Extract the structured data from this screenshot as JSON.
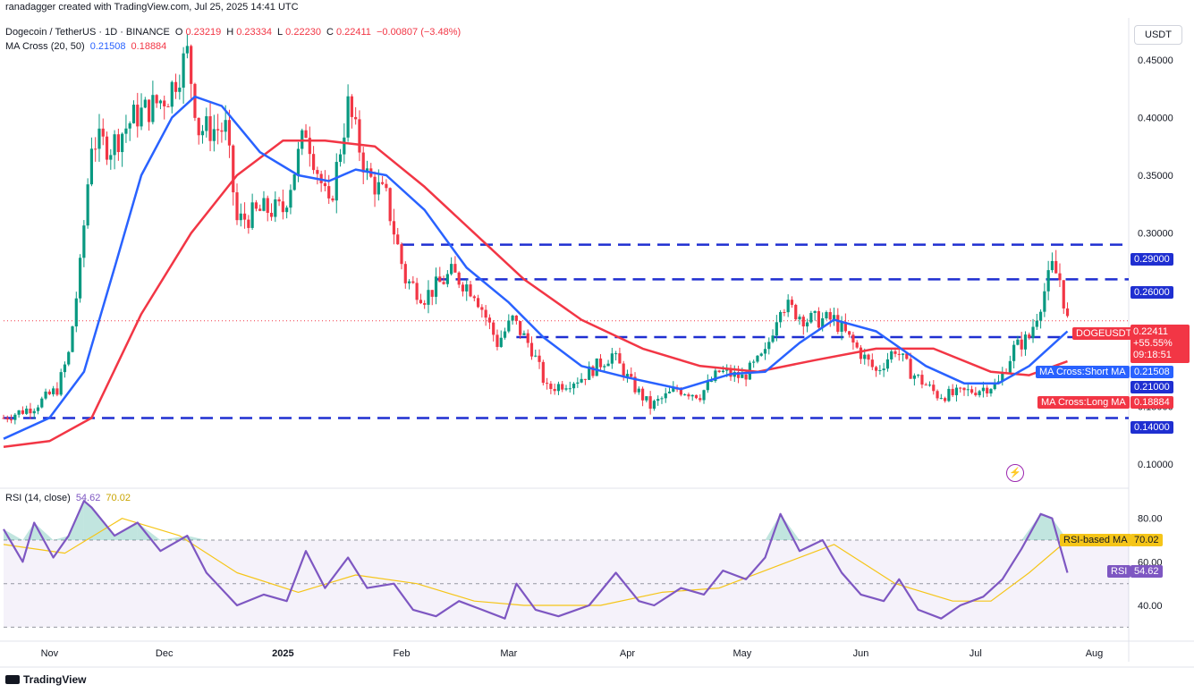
{
  "attribution": "ranadagger created with TradingView.com, Jul 25, 2025 14:41 UTC",
  "header": {
    "symbol": "Dogecoin / TetherUS · 1D · BINANCE",
    "o_label": "O",
    "o": "0.23219",
    "h_label": "H",
    "h": "0.23334",
    "l_label": "L",
    "l": "0.22230",
    "c_label": "C",
    "c": "0.22411",
    "change": "−0.00807 (−3.48%)",
    "ma_label": "MA Cross (20, 50)",
    "ma_short": "0.21508",
    "ma_long": "0.18884"
  },
  "currency_button": "USDT",
  "rsi_header": {
    "label": "RSI (14, close)",
    "value": "54.62",
    "ma": "70.02"
  },
  "price_tags": {
    "symbol": "DOGEUSDT",
    "last": "0.22411",
    "pct": "+55.55%",
    "timer": "09:18:51",
    "ma_short_label": "MA Cross:Short MA",
    "ma_short_value": "0.21508",
    "ma_long_label": "MA Cross:Long MA",
    "ma_long_value": "0.18884",
    "level_290": "0.29000",
    "level_260": "0.26000",
    "level_210": "0.21000",
    "level_140": "0.14000",
    "rsi_ma_label": "RSI-based MA",
    "rsi_ma_value": "70.02",
    "rsi_label": "RSI",
    "rsi_value": "54.62"
  },
  "footer": "TradingView",
  "colors": {
    "up": "#089981",
    "down": "#f23645",
    "short_ma": "#2962ff",
    "long_ma": "#f23645",
    "levels": "#1f2fd1",
    "rsi": "#7e57c2",
    "rsi_ma": "#f5c518"
  },
  "chart_data": [
    {
      "type": "candlestick",
      "title": "Dogecoin / TetherUS · 1D · BINANCE",
      "ylim": [
        0.08,
        0.48
      ],
      "y_ticks": [
        "0.45000",
        "0.40000",
        "0.35000",
        "0.30000",
        "0.25000",
        "0.15000",
        "0.10000"
      ],
      "x_ticks": [
        "Nov",
        "Dec",
        "2025",
        "Feb",
        "Mar",
        "Apr",
        "May",
        "Jun",
        "Jul",
        "Aug"
      ],
      "levels": [
        0.29,
        0.26,
        0.21,
        0.14
      ],
      "close_path": [
        [
          "2024-10-20",
          0.14
        ],
        [
          "2024-10-28",
          0.15
        ],
        [
          "2024-11-03",
          0.165
        ],
        [
          "2024-11-06",
          0.195
        ],
        [
          "2024-11-09",
          0.27
        ],
        [
          "2024-11-12",
          0.38
        ],
        [
          "2024-11-17",
          0.375
        ],
        [
          "2024-11-23",
          0.4
        ],
        [
          "2024-11-28",
          0.41
        ],
        [
          "2024-12-02",
          0.42
        ],
        [
          "2024-12-07",
          0.455
        ],
        [
          "2024-12-10",
          0.39
        ],
        [
          "2024-12-17",
          0.39
        ],
        [
          "2024-12-20",
          0.31
        ],
        [
          "2024-12-27",
          0.32
        ],
        [
          "2025-01-01",
          0.32
        ],
        [
          "2025-01-07",
          0.39
        ],
        [
          "2025-01-13",
          0.32
        ],
        [
          "2025-01-18",
          0.41
        ],
        [
          "2025-01-23",
          0.35
        ],
        [
          "2025-01-28",
          0.33
        ],
        [
          "2025-02-02",
          0.26
        ],
        [
          "2025-02-07",
          0.245
        ],
        [
          "2025-02-14",
          0.265
        ],
        [
          "2025-02-20",
          0.25
        ],
        [
          "2025-02-26",
          0.205
        ],
        [
          "2025-03-02",
          0.225
        ],
        [
          "2025-03-07",
          0.2
        ],
        [
          "2025-03-11",
          0.165
        ],
        [
          "2025-03-20",
          0.175
        ],
        [
          "2025-03-28",
          0.195
        ],
        [
          "2025-04-02",
          0.17
        ],
        [
          "2025-04-07",
          0.15
        ],
        [
          "2025-04-14",
          0.165
        ],
        [
          "2025-04-20",
          0.16
        ],
        [
          "2025-04-25",
          0.18
        ],
        [
          "2025-05-01",
          0.175
        ],
        [
          "2025-05-07",
          0.195
        ],
        [
          "2025-05-11",
          0.24
        ],
        [
          "2025-05-18",
          0.225
        ],
        [
          "2025-05-25",
          0.225
        ],
        [
          "2025-05-31",
          0.2
        ],
        [
          "2025-06-05",
          0.18
        ],
        [
          "2025-06-10",
          0.2
        ],
        [
          "2025-06-14",
          0.18
        ],
        [
          "2025-06-21",
          0.16
        ],
        [
          "2025-06-25",
          0.16
        ],
        [
          "2025-07-02",
          0.165
        ],
        [
          "2025-07-07",
          0.17
        ],
        [
          "2025-07-11",
          0.2
        ],
        [
          "2025-07-15",
          0.21
        ],
        [
          "2025-07-18",
          0.24
        ],
        [
          "2025-07-21",
          0.27
        ],
        [
          "2025-07-23",
          0.26
        ],
        [
          "2025-07-25",
          0.224
        ]
      ],
      "series": [
        {
          "name": "MA Cross:Short MA",
          "points": [
            [
              "2024-10-20",
              0.122
            ],
            [
              "2024-11-01",
              0.14
            ],
            [
              "2024-11-10",
              0.18
            ],
            [
              "2024-11-18",
              0.27
            ],
            [
              "2024-11-25",
              0.35
            ],
            [
              "2024-12-03",
              0.4
            ],
            [
              "2024-12-09",
              0.418
            ],
            [
              "2024-12-16",
              0.41
            ],
            [
              "2024-12-26",
              0.37
            ],
            [
              "2025-01-05",
              0.35
            ],
            [
              "2025-01-13",
              0.345
            ],
            [
              "2025-01-20",
              0.355
            ],
            [
              "2025-01-28",
              0.35
            ],
            [
              "2025-02-07",
              0.32
            ],
            [
              "2025-02-18",
              0.27
            ],
            [
              "2025-03-01",
              0.24
            ],
            [
              "2025-03-10",
              0.21
            ],
            [
              "2025-03-20",
              0.185
            ],
            [
              "2025-04-01",
              0.175
            ],
            [
              "2025-04-15",
              0.165
            ],
            [
              "2025-04-28",
              0.178
            ],
            [
              "2025-05-07",
              0.18
            ],
            [
              "2025-05-16",
              0.205
            ],
            [
              "2025-05-25",
              0.225
            ],
            [
              "2025-06-05",
              0.215
            ],
            [
              "2025-06-18",
              0.185
            ],
            [
              "2025-06-28",
              0.17
            ],
            [
              "2025-07-07",
              0.17
            ],
            [
              "2025-07-15",
              0.185
            ],
            [
              "2025-07-25",
              0.215
            ]
          ]
        },
        {
          "name": "MA Cross:Long MA",
          "points": [
            [
              "2024-10-20",
              0.115
            ],
            [
              "2024-11-01",
              0.12
            ],
            [
              "2024-11-12",
              0.14
            ],
            [
              "2024-11-25",
              0.23
            ],
            [
              "2024-12-08",
              0.3
            ],
            [
              "2024-12-20",
              0.35
            ],
            [
              "2025-01-01",
              0.38
            ],
            [
              "2025-01-12",
              0.38
            ],
            [
              "2025-01-25",
              0.375
            ],
            [
              "2025-02-07",
              0.34
            ],
            [
              "2025-02-20",
              0.3
            ],
            [
              "2025-03-05",
              0.26
            ],
            [
              "2025-03-20",
              0.225
            ],
            [
              "2025-04-05",
              0.2
            ],
            [
              "2025-04-20",
              0.185
            ],
            [
              "2025-05-05",
              0.18
            ],
            [
              "2025-05-20",
              0.19
            ],
            [
              "2025-06-05",
              0.2
            ],
            [
              "2025-06-20",
              0.2
            ],
            [
              "2025-07-05",
              0.18
            ],
            [
              "2025-07-15",
              0.177
            ],
            [
              "2025-07-25",
              0.189
            ]
          ]
        }
      ]
    },
    {
      "type": "line",
      "title": "RSI (14, close)",
      "ylim": [
        24,
        93
      ],
      "y_ticks": [
        "80.00",
        "60.00",
        "40.00"
      ],
      "bands": [
        70,
        50,
        30
      ],
      "series": [
        {
          "name": "RSI",
          "points": [
            [
              "2024-10-20",
              75
            ],
            [
              "2024-10-25",
              60
            ],
            [
              "2024-10-28",
              78
            ],
            [
              "2024-11-02",
              62
            ],
            [
              "2024-11-06",
              72
            ],
            [
              "2024-11-10",
              88
            ],
            [
              "2024-11-12",
              85
            ],
            [
              "2024-11-18",
              72
            ],
            [
              "2024-11-24",
              78
            ],
            [
              "2024-11-30",
              65
            ],
            [
              "2024-12-07",
              72
            ],
            [
              "2024-12-12",
              55
            ],
            [
              "2024-12-20",
              40
            ],
            [
              "2024-12-27",
              45
            ],
            [
              "2025-01-02",
              42
            ],
            [
              "2025-01-07",
              65
            ],
            [
              "2025-01-12",
              48
            ],
            [
              "2025-01-18",
              62
            ],
            [
              "2025-01-23",
              48
            ],
            [
              "2025-01-30",
              50
            ],
            [
              "2025-02-04",
              38
            ],
            [
              "2025-02-10",
              35
            ],
            [
              "2025-02-16",
              42
            ],
            [
              "2025-02-22",
              38
            ],
            [
              "2025-02-28",
              34
            ],
            [
              "2025-03-03",
              50
            ],
            [
              "2025-03-08",
              38
            ],
            [
              "2025-03-14",
              35
            ],
            [
              "2025-03-22",
              40
            ],
            [
              "2025-03-29",
              55
            ],
            [
              "2025-04-04",
              42
            ],
            [
              "2025-04-08",
              40
            ],
            [
              "2025-04-15",
              48
            ],
            [
              "2025-04-21",
              45
            ],
            [
              "2025-04-26",
              56
            ],
            [
              "2025-05-02",
              52
            ],
            [
              "2025-05-07",
              62
            ],
            [
              "2025-05-11",
              82
            ],
            [
              "2025-05-16",
              65
            ],
            [
              "2025-05-22",
              70
            ],
            [
              "2025-05-27",
              55
            ],
            [
              "2025-06-01",
              45
            ],
            [
              "2025-06-07",
              42
            ],
            [
              "2025-06-11",
              52
            ],
            [
              "2025-06-16",
              38
            ],
            [
              "2025-06-22",
              34
            ],
            [
              "2025-06-27",
              40
            ],
            [
              "2025-07-03",
              44
            ],
            [
              "2025-07-08",
              52
            ],
            [
              "2025-07-13",
              66
            ],
            [
              "2025-07-18",
              82
            ],
            [
              "2025-07-21",
              80
            ],
            [
              "2025-07-25",
              55
            ]
          ]
        },
        {
          "name": "RSI-based MA",
          "points": [
            [
              "2024-10-20",
              68
            ],
            [
              "2024-11-05",
              64
            ],
            [
              "2024-11-20",
              80
            ],
            [
              "2024-12-05",
              72
            ],
            [
              "2024-12-20",
              55
            ],
            [
              "2025-01-05",
              46
            ],
            [
              "2025-01-20",
              54
            ],
            [
              "2025-02-05",
              50
            ],
            [
              "2025-02-20",
              42
            ],
            [
              "2025-03-05",
              40
            ],
            [
              "2025-03-25",
              40
            ],
            [
              "2025-04-10",
              46
            ],
            [
              "2025-04-25",
              48
            ],
            [
              "2025-05-10",
              58
            ],
            [
              "2025-05-25",
              68
            ],
            [
              "2025-06-10",
              50
            ],
            [
              "2025-06-25",
              42
            ],
            [
              "2025-07-05",
              42
            ],
            [
              "2025-07-15",
              55
            ],
            [
              "2025-07-25",
              70
            ]
          ]
        }
      ]
    }
  ]
}
